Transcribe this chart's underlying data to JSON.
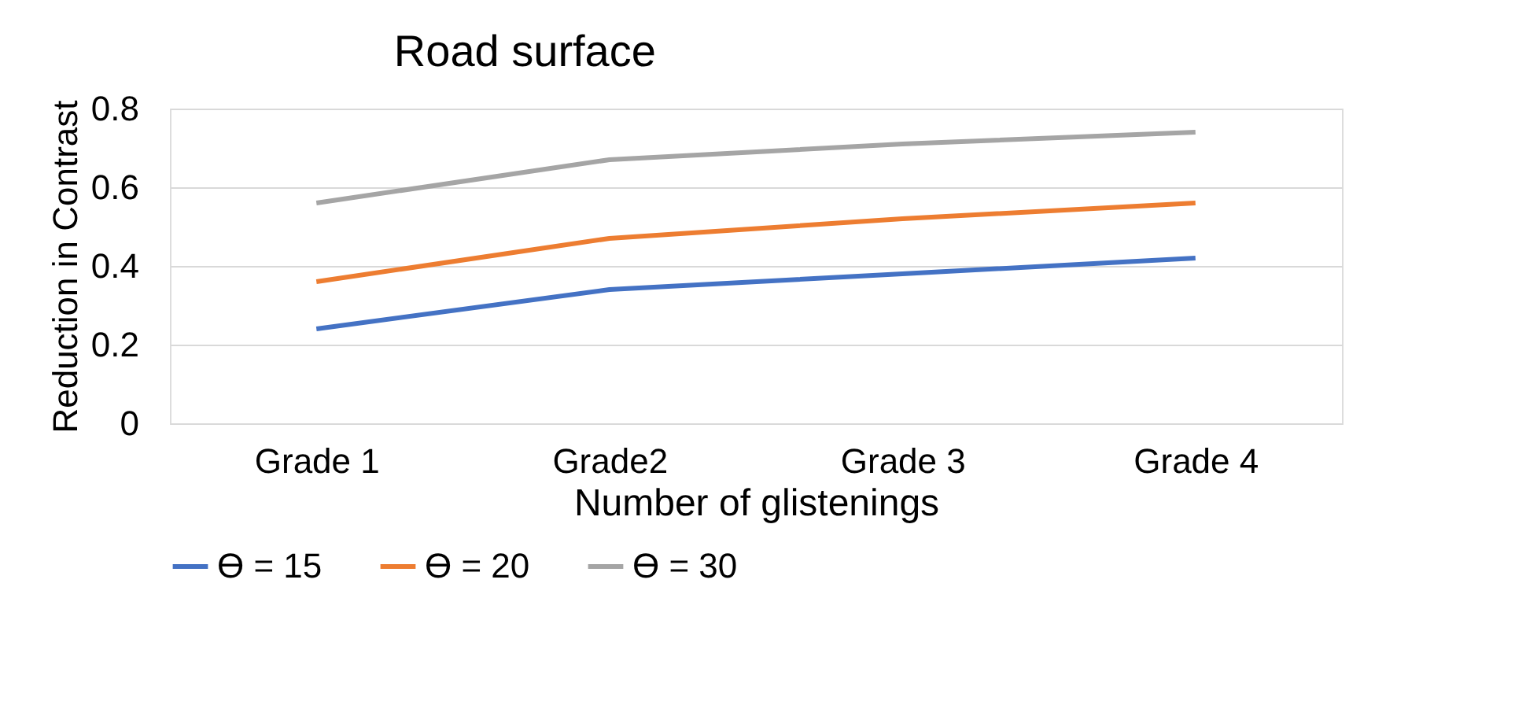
{
  "chart_data": {
    "type": "line",
    "title": "Road surface",
    "xlabel": "Number of glistenings",
    "ylabel": "Reduction in Contrast",
    "categories": [
      "Grade 1",
      "Grade2",
      "Grade 3",
      "Grade 4"
    ],
    "series": [
      {
        "name": "ϴ = 15",
        "color": "#4472c4",
        "values": [
          0.24,
          0.34,
          0.38,
          0.42
        ]
      },
      {
        "name": "ϴ = 20",
        "color": "#ed7d31",
        "values": [
          0.36,
          0.47,
          0.52,
          0.56
        ]
      },
      {
        "name": "ϴ = 30",
        "color": "#a5a5a5",
        "values": [
          0.56,
          0.67,
          0.71,
          0.74
        ]
      }
    ],
    "ylim": [
      0,
      0.8
    ],
    "yticks": [
      0,
      {
        "value": 0.2,
        "label": "0.2"
      },
      {
        "value": 0.4,
        "label": "0.4"
      },
      {
        "value": 0.6,
        "label": "0.6"
      },
      {
        "value": 0.8,
        "label": "0.8"
      }
    ],
    "grid": "y",
    "legend": "bottom",
    "marker": "none",
    "line_style": "solid"
  }
}
